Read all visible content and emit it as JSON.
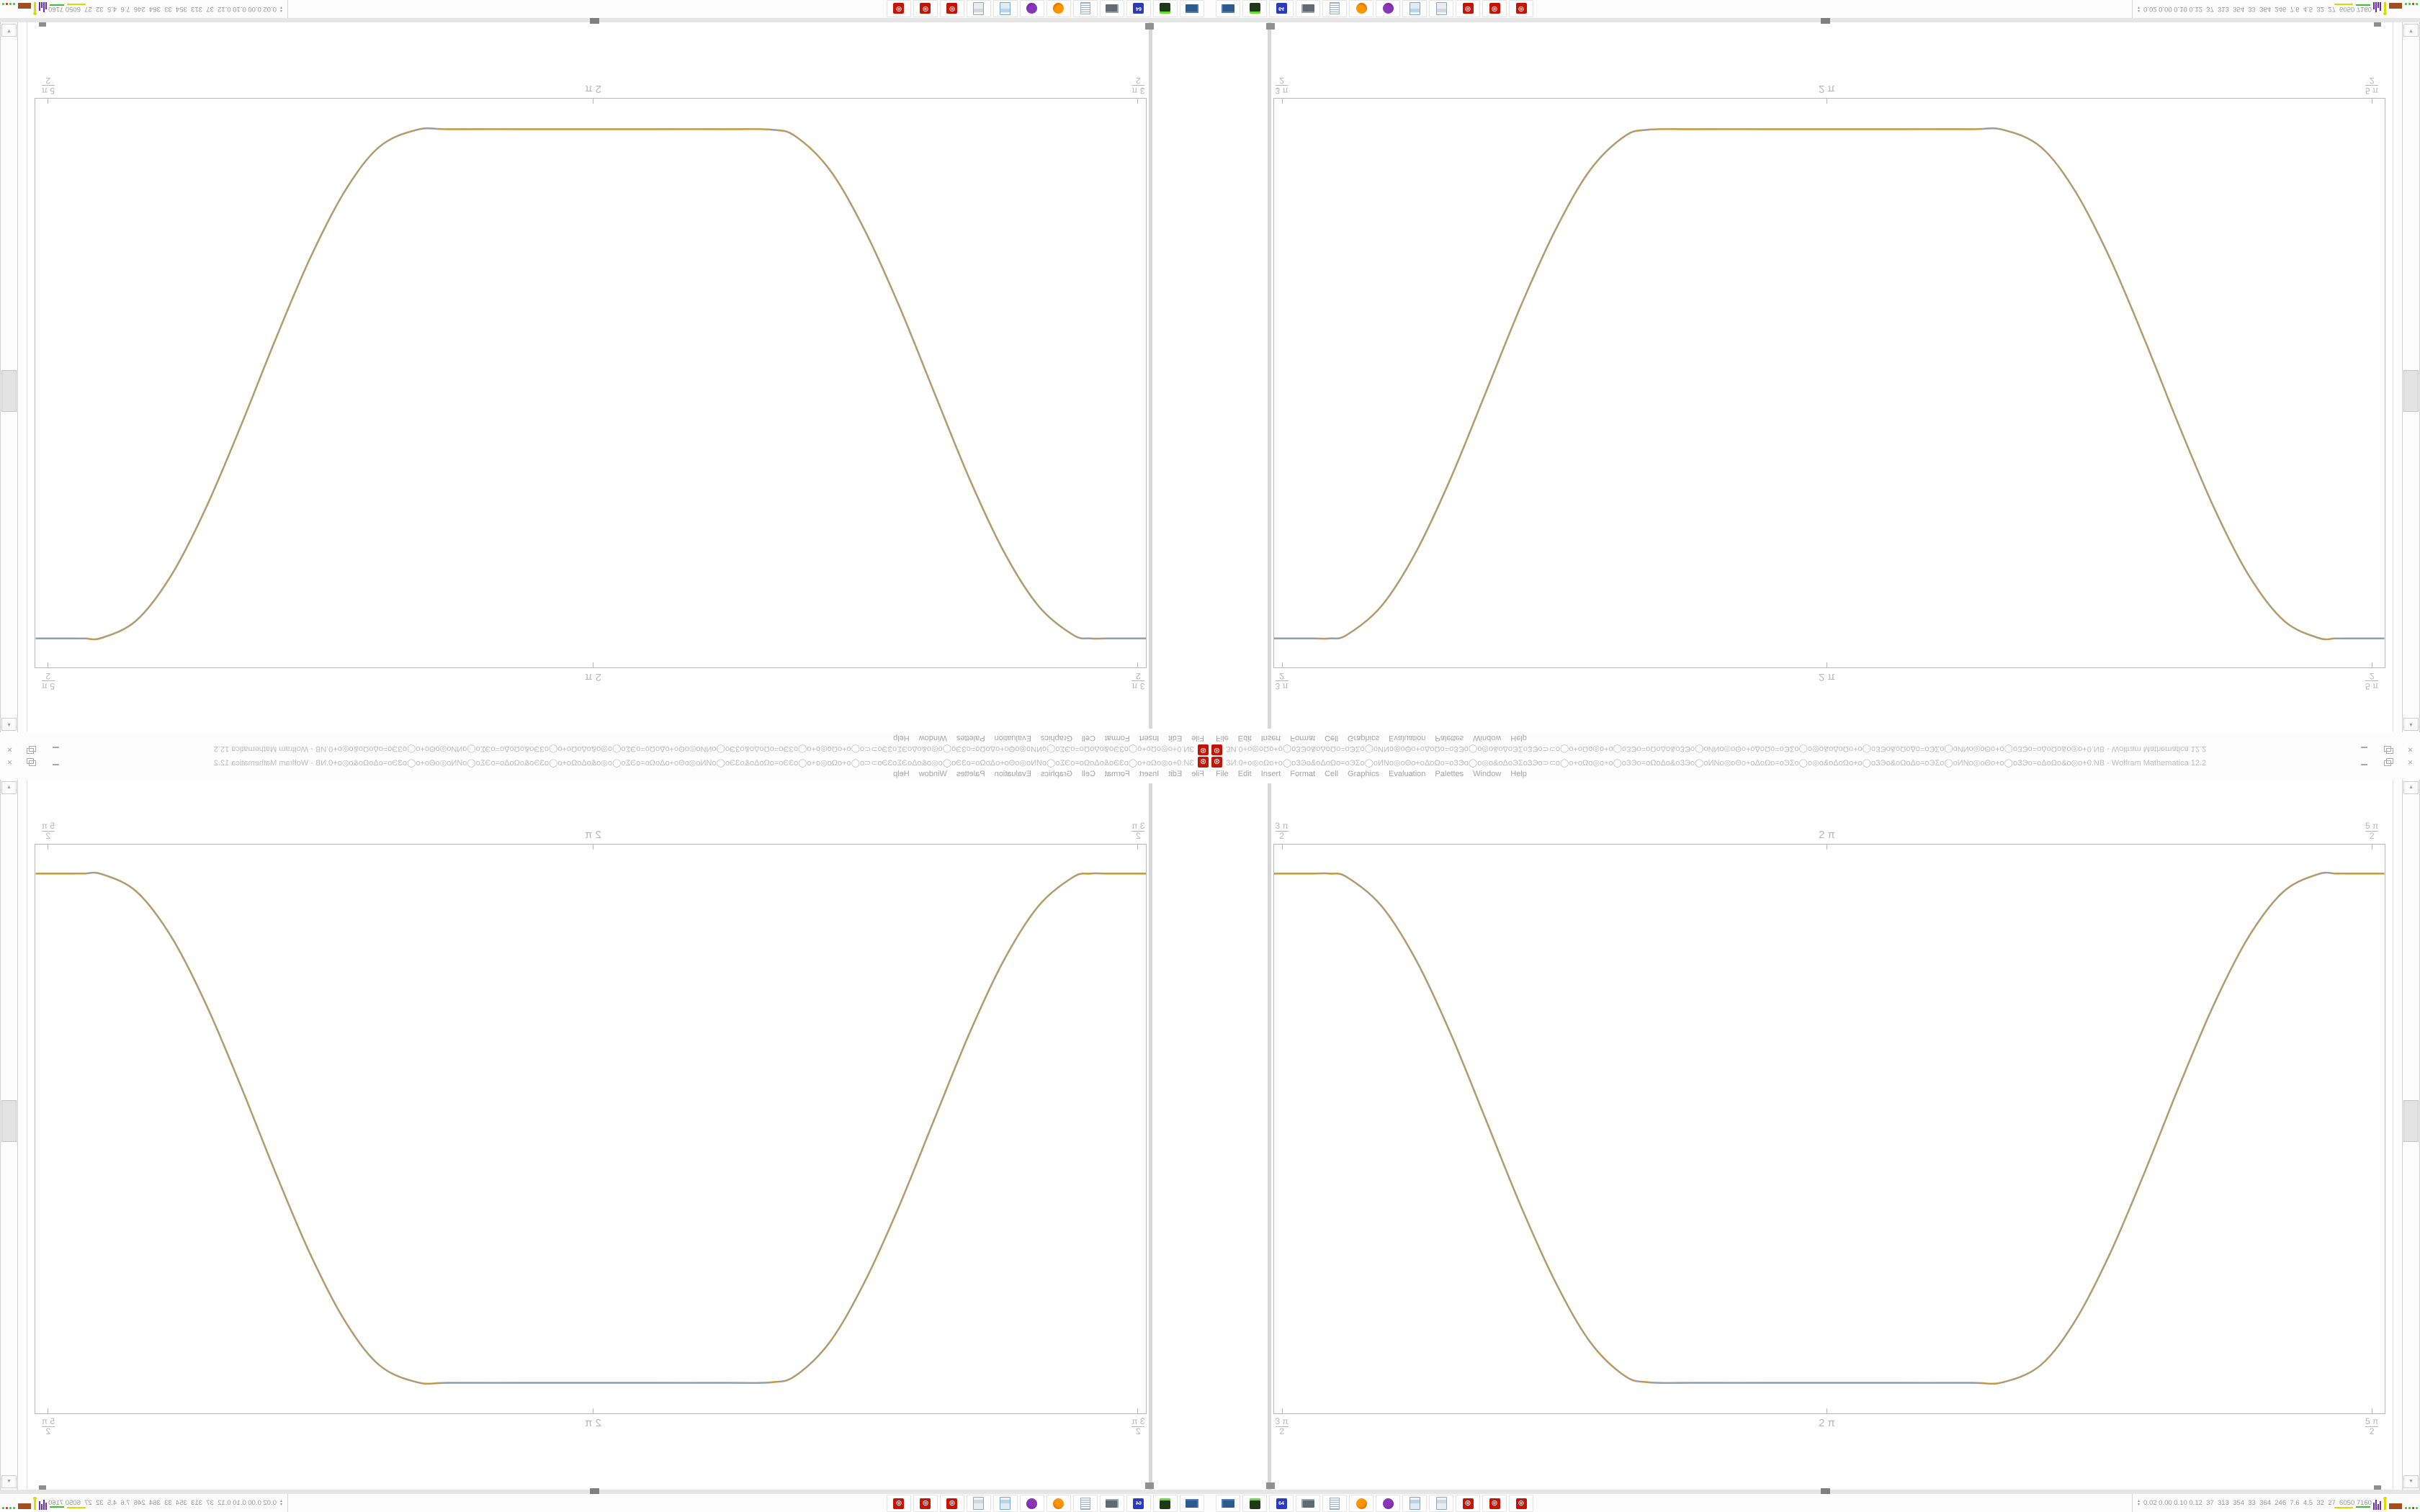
{
  "window": {
    "app_icon_glyph": "⊛",
    "title": "ЗИ.0+o◎oΩo+o◯oЗЭo&oΔoΩo=oЭΣo◯oИNo◎oΘo+oΔoΩo=oЗЭo◯o◎o&oΔoЭΣoЗЭo⊃⊂o◯o+oΩo◎o+o◯oЗЭo=oΩoΔo&oЗЭo◯oИNo◎oΘo+oΔoΩo=oЭΣo◯o◎o&oΔoΩo+o◯oЗЭo&oΩoΔo=oЭΣo◯oИNo◎oΘo+o◯oЗЭo=oΔoΩo&o◎o+0.NB - Wolfram Mathematica 12.2",
    "controls": {
      "close_glyph": "×"
    }
  },
  "menu": {
    "items": [
      "File",
      "Edit",
      "Insert",
      "Format",
      "Cell",
      "Graphics",
      "Evaluation",
      "Palettes",
      "Window",
      "Help"
    ]
  },
  "chart_data": {
    "type": "line",
    "title": "",
    "xlabel": "",
    "ylabel": "",
    "xlim": [
      4.69,
      7.891
    ],
    "ylim": [
      -0.06,
      1.057
    ],
    "frame": true,
    "grid": false,
    "legend": "none",
    "x_ticks": [
      {
        "kind": "fraction",
        "num": "3 π",
        "den": "2",
        "value": 4.712
      },
      {
        "kind": "plain",
        "label": "2 π",
        "value": 6.283
      },
      {
        "kind": "fraction",
        "num": "5 π",
        "den": "2",
        "value": 7.854
      }
    ],
    "note": "Smoothed square-wave valley centered at 2π; two nearly identical overlapping curves (blue under gold). Rendered four times in mirrored quadrants.",
    "series": [
      {
        "name": "function-1-blue",
        "color": "#8b9bb4",
        "points": [
          [
            4.69,
            1
          ],
          [
            4.8,
            1
          ],
          [
            4.85,
            1
          ],
          [
            4.9,
            0.993
          ],
          [
            5.0,
            0.936
          ],
          [
            5.1,
            0.829
          ],
          [
            5.2,
            0.684
          ],
          [
            5.3,
            0.517
          ],
          [
            5.4,
            0.349
          ],
          [
            5.5,
            0.199
          ],
          [
            5.6,
            0.081
          ],
          [
            5.7,
            0.014
          ],
          [
            5.77,
            0.001
          ],
          [
            5.9,
            0
          ],
          [
            6.1,
            0
          ],
          [
            6.28,
            0
          ],
          [
            6.5,
            0
          ],
          [
            6.7,
            0
          ],
          [
            6.79,
            0.001
          ],
          [
            6.9,
            0.035
          ],
          [
            7.0,
            0.123
          ],
          [
            7.1,
            0.255
          ],
          [
            7.2,
            0.415
          ],
          [
            7.3,
            0.585
          ],
          [
            7.4,
            0.745
          ],
          [
            7.5,
            0.877
          ],
          [
            7.6,
            0.965
          ],
          [
            7.7,
            0.999
          ],
          [
            7.75,
            1
          ],
          [
            7.8,
            1
          ],
          [
            7.89,
            1
          ]
        ]
      },
      {
        "name": "function-2-gold-overlapping",
        "color": "#d7a13a",
        "points": [
          [
            4.69,
            1
          ],
          [
            4.8,
            1
          ],
          [
            4.85,
            1
          ],
          [
            4.9,
            0.993
          ],
          [
            5.0,
            0.936
          ],
          [
            5.1,
            0.829
          ],
          [
            5.2,
            0.684
          ],
          [
            5.3,
            0.517
          ],
          [
            5.4,
            0.349
          ],
          [
            5.5,
            0.199
          ],
          [
            5.6,
            0.081
          ],
          [
            5.7,
            0.014
          ],
          [
            5.77,
            0.001
          ],
          [
            5.9,
            0
          ],
          [
            6.1,
            0
          ],
          [
            6.28,
            0
          ],
          [
            6.5,
            0
          ],
          [
            6.7,
            0
          ],
          [
            6.79,
            0.001
          ],
          [
            6.9,
            0.035
          ],
          [
            7.0,
            0.123
          ],
          [
            7.1,
            0.255
          ],
          [
            7.2,
            0.415
          ],
          [
            7.3,
            0.585
          ],
          [
            7.4,
            0.745
          ],
          [
            7.5,
            0.877
          ],
          [
            7.6,
            0.965
          ],
          [
            7.7,
            0.999
          ],
          [
            7.75,
            1
          ],
          [
            7.8,
            1
          ],
          [
            7.89,
            1
          ]
        ]
      }
    ]
  },
  "scrollbar": {
    "up_glyph": "▲",
    "down_glyph": "▼"
  },
  "taskbar": {
    "icons": [
      {
        "name": "system-monitor-icon",
        "shape": "monitor",
        "color": "#4d7db3",
        "color2": "#2c5a8c",
        "text": ""
      },
      {
        "name": "virtual-machine-icon",
        "shape": "box",
        "color": "#1c3a18",
        "color2": "#66dd33",
        "text": ""
      },
      {
        "name": "floppy-64-icon",
        "shape": "box",
        "color": "#2a3bc0",
        "color2": "#ffffff",
        "text": "64"
      },
      {
        "name": "remote-desktop-icon",
        "shape": "monitor",
        "color": "#9aa4ae",
        "color2": "#5f6a74",
        "text": ""
      },
      {
        "name": "notepad-icon",
        "shape": "doc",
        "color": "#f4f6f8",
        "color2": "#9fb2c0",
        "text": ""
      },
      {
        "name": "firefox-browser-icon",
        "shape": "circle",
        "color": "#ff9500",
        "color2": "#c24b00",
        "text": ""
      },
      {
        "name": "purple-owl-app-icon",
        "shape": "circle",
        "color": "#8a36b8",
        "color2": "#5c1e87",
        "text": ""
      },
      {
        "name": "calculator-icon",
        "shape": "calc",
        "color": "#b9d4ea",
        "color2": "#7da7c9",
        "text": ""
      },
      {
        "name": "calculator-alt-icon",
        "shape": "calc",
        "color": "#cfd8df",
        "color2": "#93a5b2",
        "text": ""
      },
      {
        "name": "mathematica-kernel-icon",
        "shape": "gear",
        "color": "#c41405",
        "color2": "#ffffff",
        "text": "⊛"
      },
      {
        "name": "mathematica-kernel-icon-2",
        "shape": "gear",
        "color": "#c41405",
        "color2": "#ffffff",
        "text": "⊛"
      },
      {
        "name": "mathematica-kernel-icon-3",
        "shape": "gear",
        "color": "#c41405",
        "color2": "#ffffff",
        "text": "⊛"
      }
    ],
    "panel": {
      "sort_up_glyph": "▴",
      "sort_down_glyph": "▾",
      "stats": "0.02 0.00 0.10 0.12  37  313  354  33  364  246  7.6  4.5  32  27  6050 7160",
      "widgets": [
        {
          "name": "cpu-yellow-line-widget"
        },
        {
          "name": "net-green-line-widget"
        },
        {
          "name": "mem-purple-bars-widget"
        },
        {
          "name": "temp-yellow-spike-widget"
        },
        {
          "name": "disk-brown-block-widget"
        },
        {
          "name": "proc-green-dots-widget"
        }
      ]
    }
  }
}
